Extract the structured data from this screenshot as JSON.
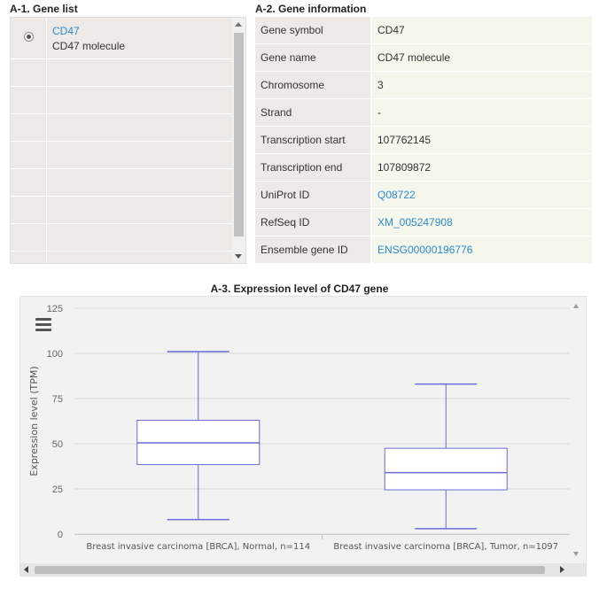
{
  "gene_list": {
    "title": "A-1. Gene list",
    "items": [
      {
        "symbol": "CD47",
        "description": "CD47 molecule",
        "selected": true
      }
    ]
  },
  "gene_info": {
    "title": "A-2. Gene information",
    "rows": [
      {
        "label": "Gene symbol",
        "value": "CD47",
        "link": false
      },
      {
        "label": "Gene name",
        "value": "CD47 molecule",
        "link": false
      },
      {
        "label": "Chromosome",
        "value": "3",
        "link": false
      },
      {
        "label": "Strand",
        "value": "-",
        "link": false
      },
      {
        "label": "Transcription start",
        "value": "107762145",
        "link": false
      },
      {
        "label": "Transcription end",
        "value": "107809872",
        "link": false
      },
      {
        "label": "UniProt ID",
        "value": "Q08722",
        "link": true
      },
      {
        "label": "RefSeq ID",
        "value": "XM_005247908",
        "link": true
      },
      {
        "label": "Ensemble gene ID",
        "value": "ENSG00000196776",
        "link": true
      }
    ]
  },
  "colors": {
    "link": "#2a8ad4",
    "box_stroke": "#6b6bd6",
    "grid": "#d8d8d8",
    "chart_bg": "#f2f2f2"
  },
  "icons": {
    "chart_menu": "menu-icon"
  },
  "chart_data": {
    "type": "boxplot",
    "title": "A-3. Expression level of CD47 gene",
    "xlabel": "",
    "ylabel": "Expression level (TPM)",
    "ylim": [
      0,
      125
    ],
    "yticks": [
      0,
      25,
      50,
      75,
      100,
      125
    ],
    "grid": true,
    "categories": [
      "Breast invasive carcinoma [BRCA], Normal, n=114",
      "Breast invasive carcinoma [BRCA], Tumor, n=1097"
    ],
    "boxes": [
      {
        "min": 8,
        "q1": 38.5,
        "median": 50.5,
        "q3": 63,
        "max": 101
      },
      {
        "min": 3,
        "q1": 24.5,
        "median": 34,
        "q3": 47.5,
        "max": 83
      }
    ]
  }
}
